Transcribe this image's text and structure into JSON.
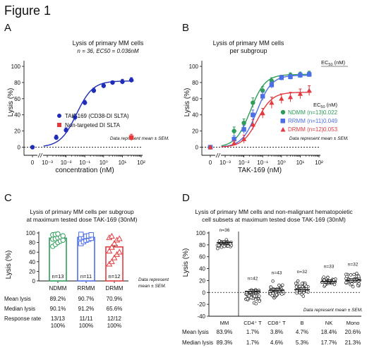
{
  "figure_title": "Figure 1",
  "panel_labels": [
    "A",
    "B",
    "C",
    "D"
  ],
  "chart_data": [
    {
      "id": "A",
      "type": "line",
      "title": "Lysis of primary MM cells",
      "subtitle": "n = 36, EC50 = 0.036nM",
      "xlabel": "concentration (nM)",
      "ylabel": "Lysis (%)",
      "xscale": "log with 0 break",
      "ylim": [
        -10,
        100
      ],
      "yticks": [
        "0",
        "20",
        "40",
        "60",
        "80",
        "100"
      ],
      "xticks": [
        "0",
        "10⁻³",
        "10⁻²",
        "10⁻¹",
        "10⁰",
        "10¹",
        "10²"
      ],
      "annotation": "Data represent mean ± SEM.",
      "legend_position": "lower-right",
      "series": [
        {
          "name": "TAK-169 (CD38-DI SLTA)",
          "color": "#1f2db8",
          "marker": "circle",
          "x": [
            0,
            0.003,
            0.01,
            0.03,
            0.1,
            0.3,
            1,
            3,
            10,
            30
          ],
          "y": [
            0,
            12,
            21,
            37,
            55,
            70,
            76,
            80,
            81,
            83
          ],
          "err": [
            1,
            3,
            3,
            4,
            3,
            3,
            3,
            2,
            3,
            3
          ],
          "curve": true
        },
        {
          "name": "Non-targeted DI SLTA",
          "color": "#e8373a",
          "marker": "square",
          "x": [
            30
          ],
          "y": [
            12
          ],
          "err": [
            4
          ],
          "curve": false
        }
      ]
    },
    {
      "id": "B",
      "type": "line",
      "title": "Lysis of primary MM cells",
      "subtitle": "per subgroup",
      "xlabel": "TAK-169 (nM)",
      "ylabel": "Lysis (%)",
      "xscale": "log with 0 break",
      "ylim": [
        -10,
        100
      ],
      "yticks": [
        "0",
        "20",
        "40",
        "60",
        "80",
        "100"
      ],
      "xticks": [
        "0",
        "10⁻³",
        "10⁻²",
        "10⁻¹",
        "10⁰",
        "10¹",
        "10²"
      ],
      "legend_header": "EC50 (nM)",
      "annotation": "Data represent mean ± SEM.",
      "series": [
        {
          "name": "NDMM (n=13)",
          "ec50": "0.022",
          "color": "#2e9d5a",
          "marker": "circle",
          "x": [
            0,
            0.003,
            0.01,
            0.03,
            0.1,
            0.3,
            1,
            3,
            10,
            30
          ],
          "y": [
            0,
            20,
            30,
            55,
            70,
            82,
            86,
            89,
            90,
            91
          ],
          "err": [
            1,
            5,
            5,
            6,
            5,
            4,
            3,
            3,
            3,
            3
          ]
        },
        {
          "name": "RRMM (n=11)",
          "ec50": "0.049",
          "color": "#4d6ee6",
          "marker": "square",
          "x": [
            0,
            0.003,
            0.01,
            0.03,
            0.1,
            0.3,
            1,
            3,
            10,
            30
          ],
          "y": [
            0,
            10,
            22,
            40,
            63,
            77,
            86,
            87,
            89,
            90
          ],
          "err": [
            1,
            4,
            5,
            6,
            5,
            4,
            3,
            3,
            3,
            3
          ]
        },
        {
          "name": "DRMM (n=12)",
          "ec50": "0.053",
          "color": "#e23a3f",
          "marker": "triangle",
          "x": [
            0,
            0.003,
            0.01,
            0.03,
            0.1,
            0.3,
            1,
            3,
            10,
            30
          ],
          "y": [
            0,
            5,
            10,
            28,
            42,
            55,
            60,
            62,
            66,
            70
          ],
          "err": [
            1,
            3,
            5,
            6,
            6,
            7,
            6,
            6,
            6,
            6
          ]
        }
      ]
    },
    {
      "id": "C",
      "type": "bar",
      "title": "Lysis of primary MM cells per subgroup",
      "subtitle": "at maximum tested dose TAK-169 (30nM)",
      "ylabel": "Lysis (%)",
      "ylim": [
        0,
        100
      ],
      "yticks": [
        "0",
        "20",
        "40",
        "60",
        "80",
        "100"
      ],
      "categories": [
        "NDMM",
        "RRMM",
        "DRMM"
      ],
      "colors": [
        "#2e9d5a",
        "#4d6ee6",
        "#e23a3f"
      ],
      "values": [
        89.2,
        90.7,
        70.9
      ],
      "n_labels": [
        "n=13",
        "n=11",
        "n=12"
      ],
      "points": [
        [
          72,
          76,
          80,
          83,
          85,
          87,
          88,
          90,
          92,
          94,
          96,
          97,
          98
        ],
        [
          78,
          82,
          85,
          87,
          89,
          90,
          92,
          93,
          94,
          96,
          97
        ],
        [
          35,
          40,
          48,
          55,
          60,
          62,
          70,
          78,
          85,
          88,
          90,
          93
        ]
      ],
      "annotation": "Data represent mean ± SEM.",
      "stats": [
        {
          "label": "Mean lysis",
          "values": [
            "89.2%",
            "90.7%",
            "70.9%"
          ]
        },
        {
          "label": "Median lysis",
          "values": [
            "90.1%",
            "91.2%",
            "65.6%"
          ]
        },
        {
          "label": "Response rate",
          "values": [
            "13/13\n100%",
            "11/11\n100%",
            "12/12\n100%"
          ]
        }
      ]
    },
    {
      "id": "D",
      "type": "scatter",
      "title": "Lysis of primary MM cells and non-malignant hematopoietic",
      "subtitle": "cell subsets at maximum tested dose TAK-169 (30nM)",
      "ylabel": "Lysis (%)",
      "ylim": [
        -40,
        100
      ],
      "yticks": [
        "-40",
        "-20",
        "0",
        "20",
        "40",
        "60",
        "80",
        "100"
      ],
      "categories": [
        "MM",
        "CD4⁺ T",
        "CD8⁺ T",
        "B",
        "NK",
        "Mono"
      ],
      "n_labels": [
        "n=36",
        "n=42",
        "n=43",
        "n=32",
        "n=33",
        "n=32"
      ],
      "means": [
        83.9,
        1.7,
        3.8,
        4.7,
        18.4,
        20.6
      ],
      "annotation": "Data represent mean ± SEM.",
      "stats": [
        {
          "label": "Mean lysis",
          "values": [
            "83.9%",
            "1.7%",
            "3.8%",
            "4.7%",
            "18.4%",
            "20.6%"
          ]
        },
        {
          "label": "Median lysis",
          "values": [
            "89.3%",
            "1.7%",
            "4.6%",
            "5.3%",
            "17.7%",
            "21.3%"
          ]
        }
      ]
    }
  ]
}
